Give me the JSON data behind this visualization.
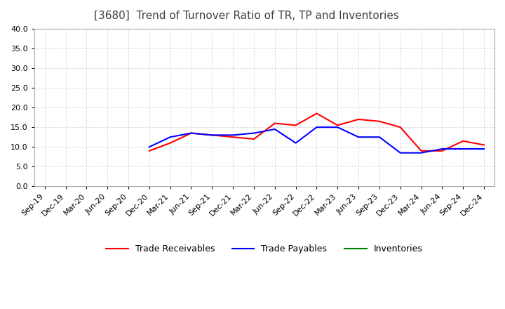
{
  "title": "[3680]  Trend of Turnover Ratio of TR, TP and Inventories",
  "x_labels": [
    "Sep-19",
    "Dec-19",
    "Mar-20",
    "Jun-20",
    "Sep-20",
    "Dec-20",
    "Mar-21",
    "Jun-21",
    "Sep-21",
    "Dec-21",
    "Mar-22",
    "Jun-22",
    "Sep-22",
    "Dec-22",
    "Mar-23",
    "Jun-23",
    "Sep-23",
    "Dec-23",
    "Mar-24",
    "Jun-24",
    "Sep-24",
    "Dec-24"
  ],
  "trade_receivables": [
    null,
    null,
    null,
    null,
    null,
    9.0,
    11.0,
    13.5,
    13.0,
    12.5,
    12.0,
    16.0,
    15.5,
    18.5,
    15.5,
    17.0,
    16.5,
    15.0,
    9.0,
    9.0,
    11.5,
    10.5
  ],
  "trade_payables": [
    null,
    null,
    null,
    null,
    null,
    10.0,
    12.5,
    13.5,
    13.0,
    13.0,
    13.5,
    14.5,
    11.0,
    15.0,
    15.0,
    12.5,
    12.5,
    8.5,
    8.5,
    9.5,
    9.5,
    9.5
  ],
  "inventories": [
    null,
    null,
    null,
    null,
    null,
    null,
    null,
    null,
    null,
    null,
    null,
    null,
    null,
    null,
    null,
    null,
    null,
    null,
    null,
    null,
    null,
    null
  ],
  "ylim": [
    0,
    40
  ],
  "yticks": [
    0.0,
    5.0,
    10.0,
    15.0,
    20.0,
    25.0,
    30.0,
    35.0,
    40.0
  ],
  "tr_color": "#ff0000",
  "tp_color": "#0000ff",
  "inv_color": "#008000",
  "background_color": "#ffffff",
  "grid_color": "#aaaaaa",
  "title_color": "#404040",
  "title_fontsize": 11,
  "tick_fontsize": 8,
  "legend_fontsize": 9
}
